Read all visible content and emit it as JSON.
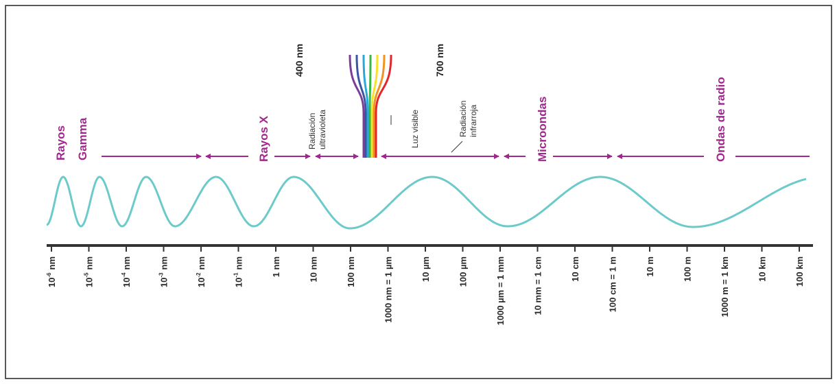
{
  "top_markers": [
    {
      "text": "400 nm"
    },
    {
      "text": "700 nm"
    }
  ],
  "regions": [
    {
      "lines": [
        "Rayos",
        "Gamma"
      ]
    },
    {
      "lines": [
        "Rayos X"
      ]
    },
    {
      "lines": [
        "Radiación",
        "ultravioleta"
      ]
    },
    {
      "lines": [
        "Luz visible"
      ]
    },
    {
      "lines": [
        "Radiación",
        "infrarroja"
      ]
    },
    {
      "lines": [
        "Microondas"
      ]
    },
    {
      "lines": [
        "Ondas de radio"
      ]
    }
  ],
  "scale": {
    "ticks": [
      {
        "base": "10",
        "exponent": "-6",
        "unit": "nm"
      },
      {
        "base": "10",
        "exponent": "-5",
        "unit": "nm"
      },
      {
        "base": "10",
        "exponent": "-4",
        "unit": "nm"
      },
      {
        "base": "10",
        "exponent": "-3",
        "unit": "nm"
      },
      {
        "base": "10",
        "exponent": "-2",
        "unit": "nm"
      },
      {
        "base": "10",
        "exponent": "-1",
        "unit": "nm"
      },
      {
        "label": "1 nm"
      },
      {
        "label": "10 nm"
      },
      {
        "label": "100 nm"
      },
      {
        "label": "1000 nm = 1 µm"
      },
      {
        "label": "10 µm"
      },
      {
        "label": "100 µm"
      },
      {
        "label": "1000 µm = 1 mm"
      },
      {
        "label": "10 mm = 1 cm"
      },
      {
        "label": "10 cm"
      },
      {
        "label": "100 cm = 1 m"
      },
      {
        "label": "10 m"
      },
      {
        "label": "100 m"
      },
      {
        "label": "1000 m = 1 km"
      },
      {
        "label": "10 km"
      },
      {
        "label": "100 km"
      }
    ]
  }
}
